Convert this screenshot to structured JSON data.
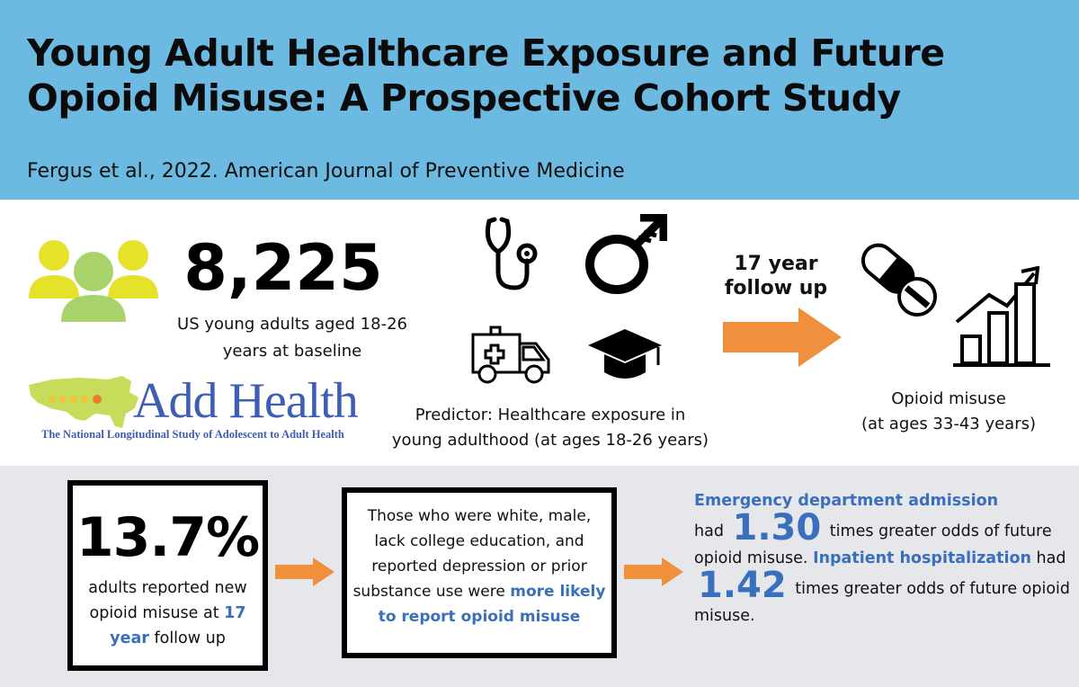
{
  "header": {
    "title_line1": "Young Adult Healthcare Exposure and Future",
    "title_line2": "Opioid Misuse: A Prospective Cohort Study",
    "citation": "Fergus et al., 2022. American Journal of Preventive Medicine"
  },
  "sample": {
    "count": "8,225",
    "caption_line1": "US young adults aged 18-26",
    "caption_line2": "years at baseline"
  },
  "logo": {
    "name": "Add Health",
    "subtitle": "The National Longitudinal Study of Adolescent to Adult Health"
  },
  "predictor": {
    "caption_line1": "Predictor: Healthcare exposure in",
    "caption_line2": "young adulthood (at ages 18-26 years)"
  },
  "followup": {
    "line1": "17 year",
    "line2": "follow up"
  },
  "outcome": {
    "line1": "Opioid misuse",
    "line2": "(at ages 33-43 years)"
  },
  "finding1": {
    "percent": "13.7%",
    "text_a": "adults reported new opioid misuse at ",
    "text_highlight": "17 year",
    "text_b": " follow up"
  },
  "finding2": {
    "text_a": "Those who were white, male, lack college education, and reported depression or prior substance use were ",
    "text_highlight": "more likely to report opioid misuse"
  },
  "finding3": {
    "ed_label": "Emergency department admission",
    "had1": "had",
    "odds1": "1.30",
    "text_a": "times greater odds of future opioid misuse.",
    "inpatient_label": "Inpatient hospitalization",
    "had2": "had",
    "odds2": "1.42",
    "text_b": "times greater odds of future opioid misuse."
  },
  "colors": {
    "header_bg": "#6cb9e2",
    "accent_blue": "#3a6fbe",
    "arrow_orange": "#f08f3c",
    "people_yellow": "#e6e22a",
    "people_green": "#a9d36a",
    "bottom_bg": "#e6e7eb"
  },
  "icons": [
    "people-icon",
    "stethoscope-icon",
    "male-symbol-icon",
    "ambulance-icon",
    "graduation-cap-icon",
    "pill-icon",
    "tablet-icon",
    "bar-chart-trend-icon",
    "arrow-right-icon",
    "us-map-icon"
  ]
}
